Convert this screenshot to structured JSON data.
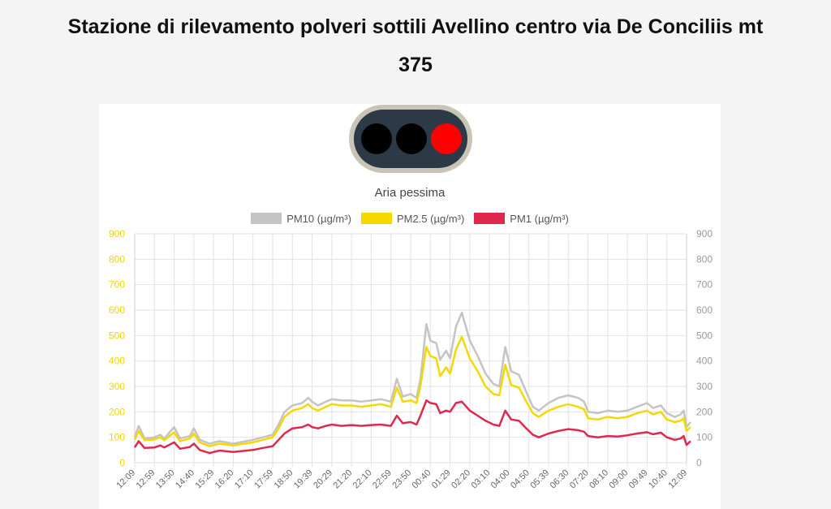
{
  "page": {
    "title_line1": "Stazione di rilevamento polveri sottili Avellino centro via De Conciliis mt",
    "title_line2": "375"
  },
  "traffic_light": {
    "lamps": [
      {
        "name": "green-lamp",
        "color": "#000000",
        "active": false
      },
      {
        "name": "yellow-lamp",
        "color": "#000000",
        "active": false
      },
      {
        "name": "red-lamp",
        "color": "#ff0000",
        "active": true
      }
    ],
    "status": "Aria pessima"
  },
  "colors": {
    "pm10": "#c4c4c4",
    "pm25": "#f5d800",
    "pm1": "#e0284e",
    "left_axis": "#f2d600",
    "right_axis": "#9a9a9a"
  },
  "chart_data": {
    "type": "line",
    "legend_position": "top",
    "grid": true,
    "ylim": [
      0,
      900
    ],
    "yticks": [
      0,
      100,
      200,
      300,
      400,
      500,
      600,
      700,
      800,
      900
    ],
    "x_ticks": [
      "12:09",
      "12:59",
      "13:50",
      "14:40",
      "15:29",
      "16:20",
      "17:10",
      "17:59",
      "18:50",
      "19:39",
      "20:29",
      "21:20",
      "22:10",
      "22:59",
      "23:50",
      "00:40",
      "01:29",
      "02:20",
      "03:10",
      "04:00",
      "04:50",
      "05:39",
      "06:30",
      "07:20",
      "08:10",
      "09:00",
      "09:49",
      "10:40",
      "12:09"
    ],
    "series": [
      {
        "name": "PM10 (µg/m³)",
        "points": [
          [
            0,
            100
          ],
          [
            0.2,
            145
          ],
          [
            0.5,
            95
          ],
          [
            1,
            100
          ],
          [
            1.3,
            110
          ],
          [
            1.5,
            95
          ],
          [
            2,
            140
          ],
          [
            2.3,
            95
          ],
          [
            2.8,
            105
          ],
          [
            3,
            135
          ],
          [
            3.3,
            90
          ],
          [
            3.8,
            75
          ],
          [
            4.3,
            85
          ],
          [
            5,
            75
          ],
          [
            6,
            90
          ],
          [
            6.5,
            100
          ],
          [
            7,
            110
          ],
          [
            7.3,
            150
          ],
          [
            7.6,
            200
          ],
          [
            8,
            225
          ],
          [
            8.5,
            235
          ],
          [
            8.8,
            255
          ],
          [
            9,
            240
          ],
          [
            9.3,
            225
          ],
          [
            9.7,
            240
          ],
          [
            10,
            250
          ],
          [
            10.5,
            245
          ],
          [
            11,
            245
          ],
          [
            11.5,
            240
          ],
          [
            12,
            245
          ],
          [
            12.5,
            250
          ],
          [
            13,
            240
          ],
          [
            13.3,
            330
          ],
          [
            13.6,
            260
          ],
          [
            14,
            270
          ],
          [
            14.3,
            255
          ],
          [
            14.5,
            330
          ],
          [
            14.8,
            545
          ],
          [
            15,
            480
          ],
          [
            15.3,
            470
          ],
          [
            15.5,
            405
          ],
          [
            15.8,
            440
          ],
          [
            16,
            410
          ],
          [
            16.3,
            535
          ],
          [
            16.6,
            590
          ],
          [
            17,
            480
          ],
          [
            17.4,
            420
          ],
          [
            17.8,
            350
          ],
          [
            18.2,
            310
          ],
          [
            18.5,
            300
          ],
          [
            18.8,
            455
          ],
          [
            19.1,
            360
          ],
          [
            19.5,
            345
          ],
          [
            19.8,
            290
          ],
          [
            20.2,
            220
          ],
          [
            20.5,
            205
          ],
          [
            21,
            235
          ],
          [
            21.5,
            255
          ],
          [
            22,
            265
          ],
          [
            22.5,
            255
          ],
          [
            22.8,
            240
          ],
          [
            23,
            200
          ],
          [
            23.5,
            195
          ],
          [
            24,
            205
          ],
          [
            24.5,
            200
          ],
          [
            25,
            205
          ],
          [
            25.5,
            220
          ],
          [
            26,
            235
          ],
          [
            26.3,
            215
          ],
          [
            26.7,
            225
          ],
          [
            27,
            195
          ],
          [
            27.4,
            180
          ],
          [
            27.7,
            190
          ],
          [
            27.85,
            205
          ],
          [
            28,
            140
          ],
          [
            28.2,
            160
          ]
        ]
      },
      {
        "name": "PM2.5 (µg/m³)",
        "points": [
          [
            0,
            90
          ],
          [
            0.2,
            125
          ],
          [
            0.5,
            88
          ],
          [
            1,
            92
          ],
          [
            1.3,
            100
          ],
          [
            1.5,
            88
          ],
          [
            2,
            120
          ],
          [
            2.3,
            85
          ],
          [
            2.8,
            95
          ],
          [
            3,
            115
          ],
          [
            3.3,
            80
          ],
          [
            3.8,
            65
          ],
          [
            4.3,
            75
          ],
          [
            5,
            68
          ],
          [
            6,
            80
          ],
          [
            6.5,
            90
          ],
          [
            7,
            100
          ],
          [
            7.3,
            135
          ],
          [
            7.6,
            180
          ],
          [
            8,
            205
          ],
          [
            8.5,
            215
          ],
          [
            8.8,
            230
          ],
          [
            9,
            215
          ],
          [
            9.3,
            205
          ],
          [
            9.7,
            220
          ],
          [
            10,
            230
          ],
          [
            10.5,
            225
          ],
          [
            11,
            225
          ],
          [
            11.5,
            220
          ],
          [
            12,
            225
          ],
          [
            12.5,
            230
          ],
          [
            13,
            220
          ],
          [
            13.3,
            295
          ],
          [
            13.6,
            240
          ],
          [
            14,
            245
          ],
          [
            14.3,
            235
          ],
          [
            14.5,
            300
          ],
          [
            14.8,
            455
          ],
          [
            15,
            420
          ],
          [
            15.3,
            410
          ],
          [
            15.5,
            340
          ],
          [
            15.8,
            375
          ],
          [
            16,
            350
          ],
          [
            16.3,
            445
          ],
          [
            16.6,
            495
          ],
          [
            17,
            410
          ],
          [
            17.4,
            360
          ],
          [
            17.8,
            300
          ],
          [
            18.2,
            270
          ],
          [
            18.5,
            265
          ],
          [
            18.8,
            385
          ],
          [
            19.1,
            305
          ],
          [
            19.5,
            295
          ],
          [
            19.8,
            250
          ],
          [
            20.2,
            195
          ],
          [
            20.5,
            180
          ],
          [
            21,
            205
          ],
          [
            21.5,
            220
          ],
          [
            22,
            230
          ],
          [
            22.5,
            220
          ],
          [
            22.8,
            210
          ],
          [
            23,
            175
          ],
          [
            23.5,
            170
          ],
          [
            24,
            180
          ],
          [
            24.5,
            175
          ],
          [
            25,
            180
          ],
          [
            25.5,
            195
          ],
          [
            26,
            205
          ],
          [
            26.3,
            190
          ],
          [
            26.7,
            200
          ],
          [
            27,
            170
          ],
          [
            27.4,
            160
          ],
          [
            27.7,
            165
          ],
          [
            27.85,
            175
          ],
          [
            28,
            125
          ],
          [
            28.2,
            140
          ]
        ]
      },
      {
        "name": "PM1 (µg/m³)",
        "points": [
          [
            0,
            60
          ],
          [
            0.2,
            85
          ],
          [
            0.5,
            58
          ],
          [
            1,
            60
          ],
          [
            1.3,
            68
          ],
          [
            1.5,
            60
          ],
          [
            2,
            80
          ],
          [
            2.3,
            55
          ],
          [
            2.8,
            62
          ],
          [
            3,
            75
          ],
          [
            3.3,
            50
          ],
          [
            3.8,
            38
          ],
          [
            4.3,
            48
          ],
          [
            5,
            42
          ],
          [
            6,
            50
          ],
          [
            6.5,
            58
          ],
          [
            7,
            65
          ],
          [
            7.3,
            90
          ],
          [
            7.6,
            115
          ],
          [
            8,
            135
          ],
          [
            8.5,
            140
          ],
          [
            8.8,
            150
          ],
          [
            9,
            140
          ],
          [
            9.3,
            135
          ],
          [
            9.7,
            145
          ],
          [
            10,
            150
          ],
          [
            10.5,
            145
          ],
          [
            11,
            148
          ],
          [
            11.5,
            145
          ],
          [
            12,
            148
          ],
          [
            12.5,
            150
          ],
          [
            13,
            145
          ],
          [
            13.3,
            185
          ],
          [
            13.6,
            155
          ],
          [
            14,
            160
          ],
          [
            14.3,
            150
          ],
          [
            14.5,
            185
          ],
          [
            14.8,
            245
          ],
          [
            15,
            235
          ],
          [
            15.3,
            230
          ],
          [
            15.5,
            195
          ],
          [
            15.8,
            205
          ],
          [
            16,
            200
          ],
          [
            16.3,
            235
          ],
          [
            16.6,
            240
          ],
          [
            17,
            205
          ],
          [
            17.4,
            185
          ],
          [
            17.8,
            165
          ],
          [
            18.2,
            150
          ],
          [
            18.5,
            145
          ],
          [
            18.8,
            205
          ],
          [
            19.1,
            170
          ],
          [
            19.5,
            165
          ],
          [
            19.8,
            140
          ],
          [
            20.2,
            110
          ],
          [
            20.5,
            100
          ],
          [
            21,
            115
          ],
          [
            21.5,
            125
          ],
          [
            22,
            132
          ],
          [
            22.5,
            128
          ],
          [
            22.8,
            122
          ],
          [
            23,
            105
          ],
          [
            23.5,
            100
          ],
          [
            24,
            105
          ],
          [
            24.5,
            103
          ],
          [
            25,
            108
          ],
          [
            25.5,
            115
          ],
          [
            26,
            120
          ],
          [
            26.3,
            112
          ],
          [
            26.7,
            118
          ],
          [
            27,
            100
          ],
          [
            27.4,
            90
          ],
          [
            27.7,
            95
          ],
          [
            27.85,
            105
          ],
          [
            28,
            70
          ],
          [
            28.2,
            85
          ]
        ]
      }
    ]
  }
}
